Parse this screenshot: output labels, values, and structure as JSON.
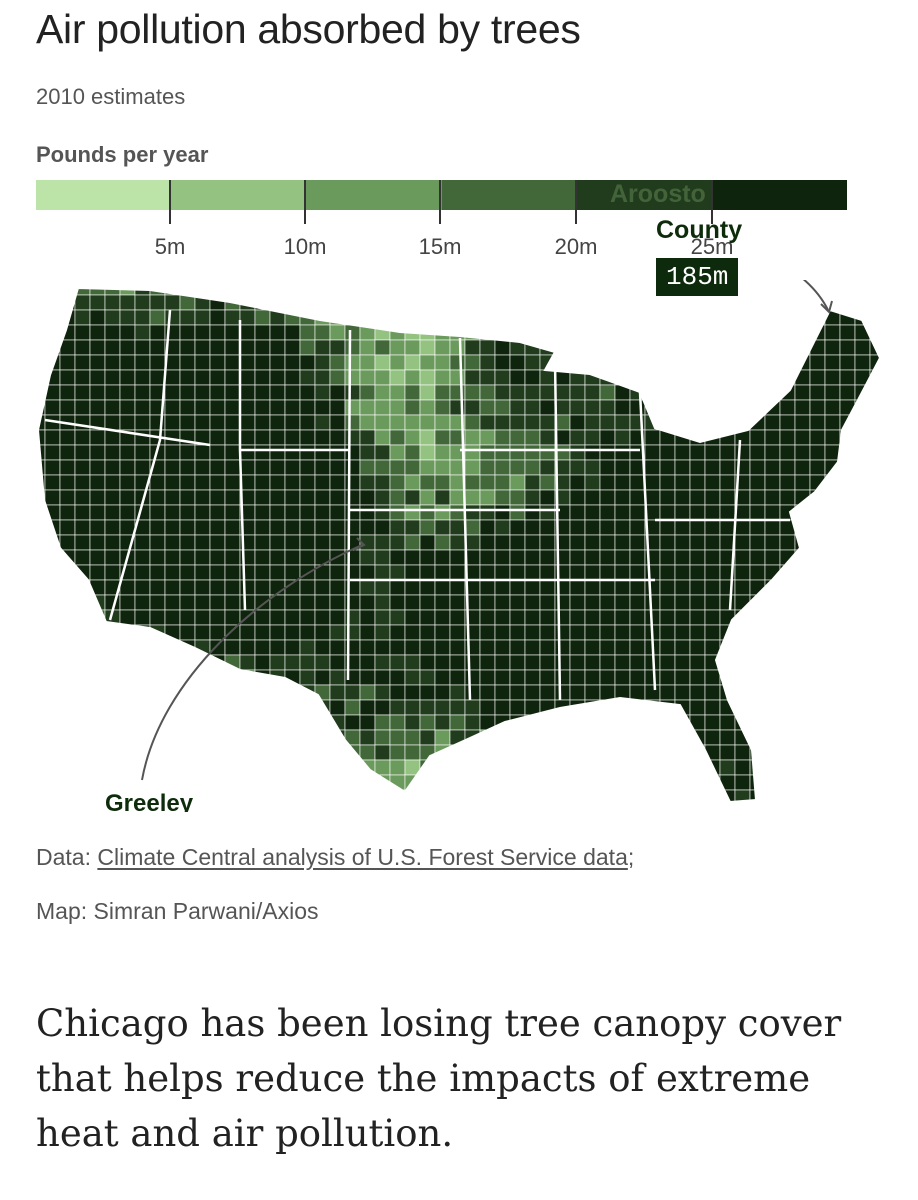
{
  "header": {
    "title": "Air pollution absorbed by trees",
    "subtitle": "2010 estimates"
  },
  "legend": {
    "title": "Pounds per year",
    "colors": [
      "#bde4a8",
      "#94c381",
      "#6b9a5d",
      "#42683a",
      "#213c1c",
      "#0f240c"
    ],
    "ticks": [
      "5m",
      "10m",
      "15m",
      "20m",
      "25m"
    ]
  },
  "annotations": {
    "north": {
      "name_partial": "Aroosto",
      "name_second_line": "County",
      "value": "185m"
    },
    "southwest": {
      "name_partial": "Greeley"
    }
  },
  "source": {
    "prefix": "Data: ",
    "link_text": "Climate Central analysis of U.S. Forest Service data",
    "suffix": ";",
    "credit": "Map: Simran Parwani/Axios"
  },
  "article": {
    "paragraph": "Chicago has been losing tree canopy cover that helps reduce the impacts of extreme heat and air pollution."
  }
}
